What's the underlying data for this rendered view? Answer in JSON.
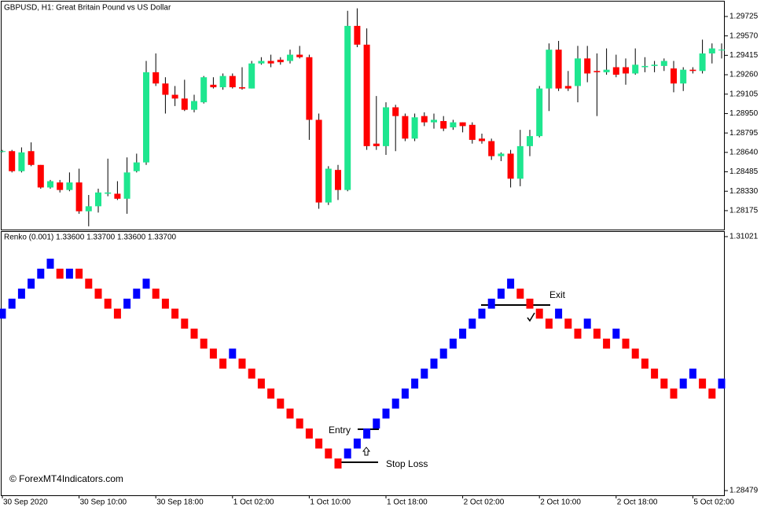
{
  "chart_data": [
    {
      "type": "candlestick",
      "title": "GBPUSD, H1:  Great Britain Pound vs US Dollar",
      "categories": [
        "30 Sep 2020",
        null,
        null,
        null,
        null,
        null,
        null,
        null,
        "30 Sep 10:00",
        null,
        null,
        null,
        null,
        null,
        null,
        null,
        "30 Sep 18:00",
        null,
        null,
        null,
        null,
        null,
        null,
        null,
        "1 Oct 02:00",
        null,
        null,
        null,
        null,
        null,
        null,
        null,
        "1 Oct 10:00",
        null,
        null,
        null,
        null,
        null,
        null,
        null,
        "1 Oct 18:00",
        null,
        null,
        null,
        null,
        null,
        null,
        null,
        "2 Oct 02:00",
        null,
        null,
        null,
        null,
        null,
        null,
        null,
        "2 Oct 10:00",
        null,
        null,
        null,
        null,
        null,
        null,
        null,
        "2 Oct 18:00",
        null,
        null,
        null,
        null,
        null,
        null,
        null,
        "5 Oct 02:00",
        null,
        null,
        null
      ],
      "open": [
        1.2865,
        1.2865,
        1.2849,
        1.2865,
        1.2854,
        1.2836,
        1.284,
        1.2834,
        1.284,
        1.2817,
        1.2821,
        1.2831,
        1.2831,
        1.2827,
        1.2849,
        1.2856,
        1.2928,
        1.2919,
        1.291,
        1.2907,
        1.2898,
        1.2904,
        1.2918,
        1.2916,
        1.2925,
        1.2916,
        1.2915,
        1.2935,
        1.2937,
        1.2938,
        1.2937,
        1.2942,
        1.294,
        1.289,
        1.2824,
        1.285,
        1.2834,
        1.2965,
        1.295,
        1.2871,
        1.2869,
        1.29,
        1.2893,
        1.2875,
        1.2893,
        1.2888,
        1.2889,
        1.2884,
        1.2888,
        1.2886,
        1.2875,
        1.2873,
        1.2861,
        1.2863,
        1.2843,
        1.2869,
        1.2877,
        1.2915,
        1.2946,
        1.2917,
        1.2917,
        1.2939,
        1.2929,
        1.2928,
        1.2932,
        1.2932,
        1.2927,
        1.2932,
        1.2933,
        1.2933,
        1.2931,
        1.2919,
        1.293,
        1.2929,
        1.2943,
        1.2946
      ],
      "high": [
        1.2866,
        1.2866,
        1.2868,
        1.2872,
        1.2854,
        1.2842,
        1.2842,
        1.2848,
        1.2851,
        1.283,
        1.2835,
        1.2859,
        1.2841,
        1.286,
        1.2863,
        1.2937,
        1.2943,
        1.2924,
        1.2917,
        1.2922,
        1.291,
        1.2925,
        1.2924,
        1.2927,
        1.2927,
        1.2932,
        1.2937,
        1.294,
        1.2942,
        1.294,
        1.2946,
        1.2949,
        1.2942,
        1.2895,
        1.2853,
        1.2854,
        1.2977,
        1.2979,
        1.2963,
        1.2909,
        1.2904,
        1.2902,
        1.2895,
        1.2895,
        1.2896,
        1.2895,
        1.2893,
        1.289,
        1.2888,
        1.2888,
        1.2879,
        1.2875,
        1.2864,
        1.2866,
        1.2882,
        1.2882,
        1.2917,
        1.2951,
        1.2953,
        1.2929,
        1.2949,
        1.2949,
        1.2943,
        1.2947,
        1.2942,
        1.2939,
        1.2947,
        1.294,
        1.2937,
        1.2939,
        1.2937,
        1.2932,
        1.2932,
        1.2954,
        1.2951,
        1.2951
      ],
      "low": [
        1.2864,
        1.2848,
        1.2848,
        1.2853,
        1.2835,
        1.2835,
        1.2832,
        1.2833,
        1.2815,
        1.2805,
        1.2816,
        1.2829,
        1.2826,
        1.2815,
        1.2848,
        1.2854,
        1.2917,
        1.2895,
        1.2901,
        1.2897,
        1.2896,
        1.2903,
        1.2915,
        1.2914,
        1.2915,
        1.2914,
        1.2915,
        1.2934,
        1.2932,
        1.2934,
        1.2935,
        1.2939,
        1.2874,
        1.2819,
        1.2822,
        1.2826,
        1.2833,
        1.2948,
        1.2866,
        1.2866,
        1.2862,
        1.2865,
        1.2873,
        1.2873,
        1.2885,
        1.2883,
        1.2881,
        1.2882,
        1.288,
        1.2871,
        1.2871,
        1.2858,
        1.2857,
        1.2836,
        1.2837,
        1.2861,
        1.2876,
        1.2897,
        1.2913,
        1.2913,
        1.2904,
        1.292,
        1.2893,
        1.2926,
        1.2924,
        1.2918,
        1.2926,
        1.2928,
        1.2928,
        1.2929,
        1.2912,
        1.2913,
        1.2927,
        1.2927,
        1.2935,
        1.2939
      ],
      "close": [
        1.2865,
        1.2849,
        1.2864,
        1.2854,
        1.2836,
        1.2841,
        1.2834,
        1.284,
        1.2817,
        1.2821,
        1.2832,
        1.2832,
        1.2827,
        1.2848,
        1.2856,
        1.2928,
        1.2919,
        1.291,
        1.2907,
        1.2898,
        1.2905,
        1.2924,
        1.2916,
        1.2925,
        1.2916,
        1.2915,
        1.2935,
        1.2937,
        1.2935,
        1.2936,
        1.2942,
        1.294,
        1.289,
        1.2824,
        1.2851,
        1.2834,
        1.2965,
        1.295,
        1.2869,
        1.2869,
        1.29,
        1.2893,
        1.2875,
        1.2892,
        1.2888,
        1.289,
        1.2883,
        1.2888,
        1.2885,
        1.2874,
        1.2873,
        1.2861,
        1.2863,
        1.2843,
        1.2869,
        1.2877,
        1.2915,
        1.2946,
        1.2915,
        1.2915,
        1.2939,
        1.2927,
        1.2928,
        1.293,
        1.2926,
        1.2927,
        1.2934,
        1.2933,
        1.2934,
        1.2937,
        1.2919,
        1.293,
        1.2929,
        1.2943,
        1.2947,
        1.2946
      ],
      "up_color": "#1ee68f",
      "down_color": "#ff0000",
      "ylim": [
        1.28024,
        1.29844
      ],
      "yticks": [
        1.29725,
        {
          "value": 1.2957,
          "label": "1.29570"
        },
        1.29415,
        {
          "value": 1.2926,
          "label": "1.29260"
        },
        1.29105,
        {
          "value": 1.2895,
          "label": "1.28950"
        },
        1.28795,
        {
          "value": 1.2864,
          "label": "1.28640"
        },
        1.28485,
        {
          "value": 1.2833,
          "label": "1.28330"
        },
        1.28175
      ]
    },
    {
      "type": "renko",
      "title": "Renko (0.001) 1.33600 1.33700 1.33600 1.33700",
      "open": [
        1.302,
        1.303,
        1.304,
        1.305,
        1.306,
        1.307,
        1.307,
        1.306,
        1.307,
        1.306,
        1.305,
        1.304,
        1.303,
        1.303,
        1.304,
        1.305,
        1.305,
        1.304,
        1.303,
        1.302,
        1.301,
        1.3,
        1.299,
        1.298,
        1.298,
        1.298,
        1.297,
        1.296,
        1.295,
        1.294,
        1.293,
        1.292,
        1.291,
        1.29,
        1.289,
        1.288,
        1.288,
        1.289,
        1.29,
        1.291,
        1.292,
        1.293,
        1.294,
        1.295,
        1.296,
        1.297,
        1.298,
        1.299,
        1.3,
        1.301,
        1.302,
        1.303,
        1.304,
        1.305,
        1.305,
        1.304,
        1.303,
        1.302,
        1.302,
        1.302,
        1.301,
        1.301,
        1.301,
        1.3,
        1.3,
        1.3,
        1.299,
        1.298,
        1.297,
        1.296,
        1.295,
        1.295,
        1.296,
        1.296,
        1.295,
        1.295
      ],
      "close": [
        1.303,
        1.304,
        1.305,
        1.306,
        1.307,
        1.308,
        1.306,
        1.307,
        1.306,
        1.305,
        1.304,
        1.303,
        1.302,
        1.304,
        1.305,
        1.306,
        1.304,
        1.303,
        1.302,
        1.301,
        1.3,
        1.299,
        1.298,
        1.297,
        1.299,
        1.297,
        1.296,
        1.295,
        1.294,
        1.293,
        1.292,
        1.291,
        1.29,
        1.289,
        1.288,
        1.287,
        1.289,
        1.29,
        1.291,
        1.292,
        1.293,
        1.294,
        1.295,
        1.296,
        1.297,
        1.298,
        1.299,
        1.3,
        1.301,
        1.302,
        1.303,
        1.304,
        1.305,
        1.306,
        1.304,
        1.303,
        1.302,
        1.301,
        1.303,
        1.301,
        1.3,
        1.302,
        1.3,
        1.299,
        1.301,
        1.299,
        1.298,
        1.297,
        1.296,
        1.295,
        1.294,
        1.296,
        1.297,
        1.295,
        1.294,
        1.296
      ],
      "up_color": "#0000ff",
      "down_color": "#ff0000",
      "ylim": [
        1.28432,
        1.31068
      ],
      "yticks": [
        1.31021,
        1.28479
      ],
      "annotations": [
        "Entry",
        "Exit",
        "Stop Loss"
      ]
    }
  ],
  "watermark": "© ForexMT4Indicators.com"
}
